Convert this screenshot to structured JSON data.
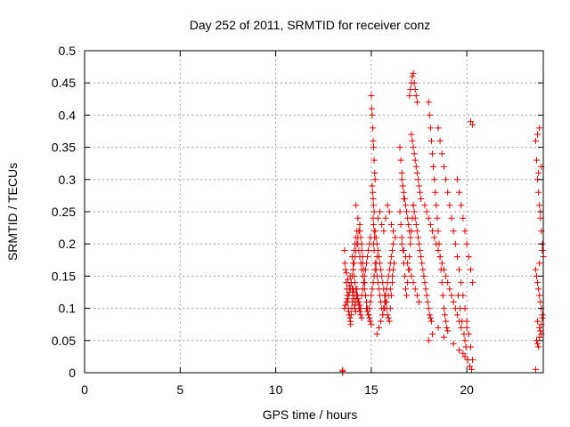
{
  "chart_data": {
    "type": "scatter",
    "title": "Day 252 of 2011, SRMTID for receiver conz",
    "xlabel": "GPS time / hours",
    "ylabel": "SRMTID / TECUs",
    "xlim": [
      0,
      24
    ],
    "ylim": [
      0,
      0.5
    ],
    "xticks": [
      0,
      5,
      10,
      15,
      20
    ],
    "xtick_labels": [
      "0",
      "5",
      "10",
      "15",
      "20"
    ],
    "yticks": [
      0,
      0.05,
      0.1,
      0.15,
      0.2,
      0.25,
      0.3,
      0.35,
      0.4,
      0.45,
      0.5
    ],
    "ytick_labels": [
      "0",
      "0.05",
      "0.1",
      "0.15",
      "0.2",
      "0.25",
      "0.3",
      "0.35",
      "0.4",
      "0.45",
      "0.5"
    ],
    "grid": true,
    "marker": "+",
    "marker_color": "#e00000",
    "grid_color": "#a0a0a0",
    "series": [
      {
        "name": "SRMTID",
        "x": [
          13.5,
          13.5,
          13.5,
          13.6,
          13.65,
          13.7,
          13.72,
          13.75,
          13.78,
          13.8,
          13.82,
          13.85,
          13.88,
          13.9,
          13.92,
          13.95,
          13.98,
          14.0,
          14.02,
          14.05,
          14.08,
          14.1,
          14.12,
          14.15,
          14.18,
          14.2,
          14.22,
          14.25,
          14.28,
          14.3,
          14.35,
          14.4,
          14.45,
          14.5,
          13.62,
          13.7,
          13.78,
          13.85,
          13.9,
          13.95,
          14.0,
          14.05,
          14.1,
          14.15,
          14.2,
          14.25,
          14.3,
          14.35,
          14.4,
          14.45,
          14.5,
          14.55,
          14.6,
          14.65,
          14.7,
          14.75,
          14.8,
          14.85,
          14.9,
          14.95,
          14.0,
          14.05,
          14.1,
          14.15,
          14.2,
          14.25,
          14.3,
          14.35,
          14.4,
          14.45,
          14.5,
          14.55,
          14.6,
          14.65,
          14.7,
          14.75,
          14.8,
          14.85,
          14.9,
          14.95,
          15.0,
          13.6,
          13.65,
          13.7,
          13.75,
          13.8,
          13.85,
          13.9,
          13.95,
          14.0,
          14.05,
          14.1,
          14.15,
          14.2,
          14.25,
          14.3,
          14.35,
          14.4,
          14.45,
          14.5,
          14.55,
          14.2,
          14.3,
          14.4,
          14.5,
          14.55,
          14.6,
          14.65,
          14.7,
          14.75,
          14.8,
          14.85,
          14.9,
          14.95,
          15.0,
          15.05,
          15.1,
          15.15,
          15.2,
          15.25,
          15.3,
          15.0,
          15.02,
          15.05,
          15.08,
          15.1,
          15.12,
          15.15,
          15.18,
          15.2,
          15.05,
          15.08,
          15.1,
          15.12,
          15.15,
          15.1,
          15.12,
          15.15,
          15.18,
          15.12,
          15.15,
          15.2,
          15.25,
          15.3,
          15.35,
          15.4,
          15.45,
          15.5,
          15.55,
          15.6,
          15.65,
          15.7,
          15.75,
          15.8,
          15.85,
          15.9,
          15.95,
          16.0,
          16.05,
          16.1,
          16.15,
          15.2,
          15.25,
          15.3,
          15.35,
          15.4,
          15.45,
          15.5,
          15.55,
          15.6,
          15.65,
          15.7,
          15.75,
          15.8,
          15.85,
          15.9,
          15.95,
          16.0,
          16.05,
          16.1,
          16.15,
          15.3,
          15.4,
          15.5,
          15.6,
          15.7,
          15.8,
          15.9,
          16.0,
          16.1,
          16.2,
          15.35,
          15.45,
          15.55,
          15.65,
          15.75,
          15.85,
          15.95,
          16.05,
          16.15,
          16.25,
          16.5,
          16.55,
          16.6,
          16.65,
          16.7,
          16.5,
          16.55,
          16.6,
          16.65,
          16.7,
          16.75,
          16.8,
          16.85,
          16.9,
          16.95,
          17.0,
          17.05,
          17.1,
          17.15,
          17.2,
          16.6,
          16.65,
          16.7,
          16.75,
          16.8,
          16.85,
          16.9,
          16.95,
          17.0,
          17.05,
          16.6,
          16.7,
          16.8,
          16.9,
          17.0,
          17.1,
          17.2,
          17.3,
          17.4,
          17.5,
          17.0,
          17.05,
          17.1,
          17.15,
          17.2,
          17.25,
          17.3,
          17.35,
          17.4,
          17.1,
          17.15,
          17.2,
          17.25,
          17.3,
          17.35,
          17.4,
          17.45,
          17.5,
          17.55,
          17.6,
          17.2,
          17.25,
          17.3,
          17.35,
          17.4,
          17.45,
          17.5,
          17.55,
          17.6,
          17.65,
          17.7,
          17.75,
          17.8,
          17.85,
          17.9,
          17.95,
          18.0,
          18.05,
          18.1,
          18.15,
          18.0,
          18.05,
          18.1,
          18.15,
          18.2,
          18.25,
          18.3,
          18.35,
          18.4,
          18.45,
          18.5,
          18.55,
          18.6,
          18.65,
          18.7,
          18.75,
          18.8,
          18.85,
          18.9,
          18.95,
          17.8,
          17.9,
          18.0,
          18.1,
          18.2,
          18.3,
          18.4,
          18.5,
          18.6,
          18.7,
          18.8,
          18.9,
          19.0,
          19.1,
          19.2,
          19.3,
          19.4,
          19.5,
          19.6,
          19.7,
          18.5,
          18.6,
          18.7,
          18.8,
          18.9,
          19.0,
          19.1,
          19.2,
          19.3,
          19.4,
          19.5,
          19.6,
          19.7,
          19.8,
          19.9,
          20.0,
          20.1,
          20.2,
          20.3,
          19.5,
          19.6,
          19.7,
          19.8,
          19.9,
          20.0,
          20.1,
          20.2,
          20.3,
          19.55,
          19.65,
          19.75,
          19.85,
          19.95,
          20.05,
          20.15,
          20.25,
          19.8,
          19.9,
          20.0,
          18.0,
          18.2,
          18.5,
          18.8,
          19.0,
          19.3,
          19.6,
          19.9,
          20.2,
          20.3,
          23.6,
          23.65,
          23.7,
          23.75,
          23.8,
          23.85,
          23.9,
          23.95,
          24.0,
          23.6,
          23.65,
          23.7,
          23.75,
          23.8,
          23.85,
          23.9,
          23.95,
          23.7,
          23.8,
          23.9,
          23.65,
          23.7,
          23.75,
          23.8,
          23.85,
          23.9,
          23.95,
          23.6,
          23.7,
          23.8,
          23.9,
          23.75,
          23.85,
          23.95,
          23.8
        ],
        "y": [
          0.0,
          0.002,
          0.004,
          0.19,
          0.16,
          0.14,
          0.13,
          0.12,
          0.11,
          0.1,
          0.095,
          0.09,
          0.085,
          0.08,
          0.075,
          0.09,
          0.1,
          0.11,
          0.12,
          0.13,
          0.125,
          0.115,
          0.105,
          0.1,
          0.095,
          0.11,
          0.12,
          0.13,
          0.12,
          0.11,
          0.1,
          0.095,
          0.09,
          0.085,
          0.17,
          0.155,
          0.145,
          0.135,
          0.15,
          0.14,
          0.13,
          0.16,
          0.15,
          0.14,
          0.13,
          0.12,
          0.115,
          0.11,
          0.105,
          0.1,
          0.12,
          0.13,
          0.14,
          0.15,
          0.16,
          0.17,
          0.18,
          0.19,
          0.2,
          0.21,
          0.18,
          0.17,
          0.19,
          0.2,
          0.21,
          0.22,
          0.2,
          0.19,
          0.18,
          0.17,
          0.16,
          0.15,
          0.14,
          0.13,
          0.12,
          0.11,
          0.1,
          0.09,
          0.085,
          0.08,
          0.075,
          0.1,
          0.105,
          0.11,
          0.115,
          0.12,
          0.125,
          0.13,
          0.14,
          0.15,
          0.16,
          0.17,
          0.18,
          0.19,
          0.2,
          0.21,
          0.22,
          0.23,
          0.21,
          0.19,
          0.17,
          0.26,
          0.24,
          0.22,
          0.2,
          0.18,
          0.16,
          0.14,
          0.12,
          0.1,
          0.095,
          0.09,
          0.1,
          0.11,
          0.12,
          0.13,
          0.14,
          0.15,
          0.16,
          0.17,
          0.18,
          0.43,
          0.41,
          0.4,
          0.38,
          0.36,
          0.35,
          0.33,
          0.31,
          0.3,
          0.29,
          0.28,
          0.27,
          0.26,
          0.25,
          0.24,
          0.23,
          0.22,
          0.21,
          0.2,
          0.19,
          0.17,
          0.16,
          0.15,
          0.14,
          0.13,
          0.12,
          0.11,
          0.1,
          0.09,
          0.1,
          0.11,
          0.12,
          0.13,
          0.14,
          0.15,
          0.16,
          0.17,
          0.18,
          0.19,
          0.2,
          0.22,
          0.21,
          0.2,
          0.19,
          0.18,
          0.17,
          0.16,
          0.15,
          0.14,
          0.13,
          0.12,
          0.11,
          0.1,
          0.09,
          0.085,
          0.08,
          0.1,
          0.12,
          0.14,
          0.16,
          0.06,
          0.07,
          0.08,
          0.09,
          0.1,
          0.11,
          0.12,
          0.13,
          0.15,
          0.17,
          0.24,
          0.25,
          0.23,
          0.22,
          0.24,
          0.26,
          0.25,
          0.23,
          0.22,
          0.21,
          0.35,
          0.33,
          0.31,
          0.29,
          0.27,
          0.25,
          0.23,
          0.21,
          0.19,
          0.17,
          0.15,
          0.13,
          0.12,
          0.14,
          0.16,
          0.18,
          0.2,
          0.22,
          0.24,
          0.26,
          0.3,
          0.29,
          0.28,
          0.27,
          0.26,
          0.25,
          0.24,
          0.23,
          0.22,
          0.21,
          0.2,
          0.19,
          0.18,
          0.17,
          0.16,
          0.15,
          0.14,
          0.13,
          0.12,
          0.11,
          0.43,
          0.44,
          0.45,
          0.46,
          0.465,
          0.45,
          0.44,
          0.43,
          0.42,
          0.37,
          0.36,
          0.35,
          0.34,
          0.33,
          0.32,
          0.31,
          0.3,
          0.29,
          0.28,
          0.27,
          0.26,
          0.25,
          0.24,
          0.23,
          0.22,
          0.21,
          0.2,
          0.19,
          0.18,
          0.17,
          0.16,
          0.15,
          0.14,
          0.13,
          0.12,
          0.11,
          0.1,
          0.09,
          0.085,
          0.08,
          0.42,
          0.4,
          0.38,
          0.36,
          0.34,
          0.32,
          0.3,
          0.28,
          0.26,
          0.24,
          0.22,
          0.2,
          0.18,
          0.16,
          0.14,
          0.12,
          0.1,
          0.09,
          0.08,
          0.07,
          0.26,
          0.25,
          0.24,
          0.23,
          0.22,
          0.21,
          0.2,
          0.19,
          0.18,
          0.17,
          0.16,
          0.15,
          0.14,
          0.13,
          0.12,
          0.11,
          0.1,
          0.09,
          0.08,
          0.07,
          0.38,
          0.36,
          0.34,
          0.32,
          0.3,
          0.28,
          0.26,
          0.24,
          0.22,
          0.2,
          0.18,
          0.16,
          0.14,
          0.12,
          0.1,
          0.08,
          0.06,
          0.04,
          0.02,
          0.3,
          0.28,
          0.26,
          0.24,
          0.22,
          0.2,
          0.18,
          0.16,
          0.14,
          0.12,
          0.1,
          0.08,
          0.06,
          0.04,
          0.02,
          0.01,
          0.005,
          0.03,
          0.05,
          0.07,
          0.05,
          0.06,
          0.07,
          0.055,
          0.065,
          0.045,
          0.035,
          0.025,
          0.39,
          0.385,
          0.36,
          0.33,
          0.3,
          0.28,
          0.26,
          0.24,
          0.22,
          0.2,
          0.18,
          0.16,
          0.15,
          0.14,
          0.13,
          0.12,
          0.11,
          0.1,
          0.09,
          0.08,
          0.07,
          0.06,
          0.05,
          0.045,
          0.04,
          0.055,
          0.065,
          0.075,
          0.085,
          0.005,
          0.37,
          0.38,
          0.32,
          0.31,
          0.25,
          0.19,
          0.17
        ]
      }
    ]
  }
}
